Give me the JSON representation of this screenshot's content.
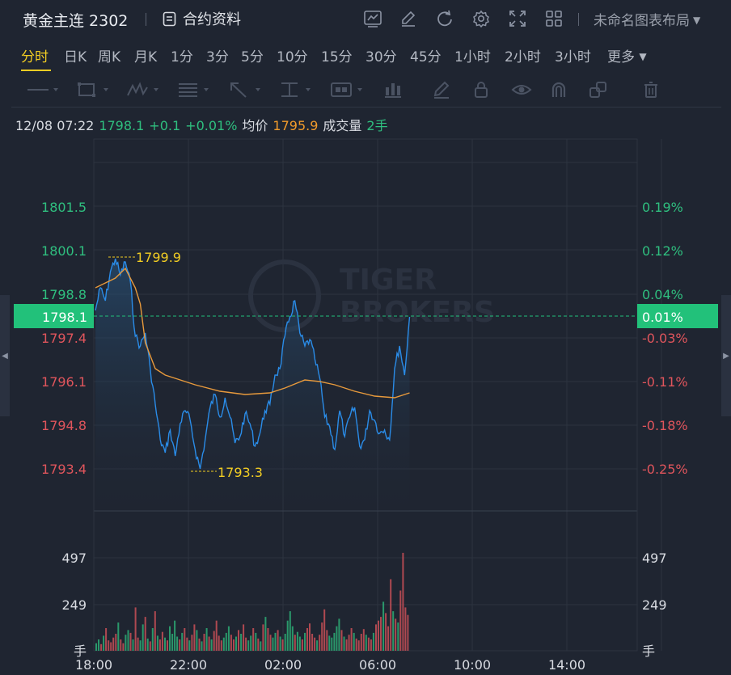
{
  "header": {
    "title": "黄金主连 2302",
    "contract_label": "合约资料",
    "layout_label": "未命名图表布局",
    "icons": [
      "indicator-icon",
      "draw-icon",
      "refresh-icon",
      "settings-icon",
      "fullscreen-icon",
      "grid-layout-icon"
    ]
  },
  "periods": [
    {
      "label": "分时",
      "active": true
    },
    {
      "label": "日K"
    },
    {
      "label": "周K"
    },
    {
      "label": "月K"
    },
    {
      "label": "1分"
    },
    {
      "label": "3分"
    },
    {
      "label": "5分"
    },
    {
      "label": "10分"
    },
    {
      "label": "15分"
    },
    {
      "label": "30分"
    },
    {
      "label": "45分"
    },
    {
      "label": "1小时"
    },
    {
      "label": "2小时"
    },
    {
      "label": "3小时"
    },
    {
      "label": "更多"
    }
  ],
  "toolbar_icons": [
    "line-tool-icon",
    "rectangle-tool-icon",
    "wave-tool-icon",
    "fib-tool-icon",
    "arrow-tool-icon",
    "text-tool-icon",
    "label-tool-icon",
    "bar-tool-icon",
    "pen-icon",
    "lock-icon",
    "eye-icon",
    "magnet-icon",
    "copy-icon",
    "trash-icon"
  ],
  "info": {
    "datetime": "12/08 07:22",
    "price": "1798.1",
    "change": "+0.1",
    "change_pct": "+0.01%",
    "avg_label": "均价",
    "avg_value": "1795.9",
    "volume_label": "成交量",
    "volume_value": "2手"
  },
  "watermark": "TIGER BROKERS",
  "colors": {
    "up": "#2fbf7f",
    "down": "#e0555c",
    "price_line": "#2a8ce8",
    "avg_line": "#e89a3c",
    "highlight": "#22c17a"
  },
  "chart_data": {
    "type": "line",
    "x_ticks": [
      "18:00",
      "22:00",
      "02:00",
      "06:00",
      "10:00",
      "14:00"
    ],
    "price_ticks": [
      1801.5,
      1800.1,
      1798.8,
      1797.4,
      1796.1,
      1794.8,
      1793.4
    ],
    "price_tick_labels": [
      "1801.5",
      "1800.1",
      "1798.8",
      "1797.4",
      "1796.1",
      "1794.8",
      "1793.4"
    ],
    "pct_tick_labels": [
      "0.19%",
      "0.12%",
      "0.04%",
      "-0.03%",
      "-0.11%",
      "-0.18%",
      "-0.25%"
    ],
    "current_price": "1798.1",
    "current_pct": "0.01%",
    "high_label": "1799.9",
    "low_label": "1793.3",
    "volume_ticks": [
      "497",
      "249"
    ],
    "volume_unit": "手",
    "price_series": [
      [
        0,
        1798.3
      ],
      [
        2,
        1799.0
      ],
      [
        4,
        1798.6
      ],
      [
        6,
        1799.5
      ],
      [
        8,
        1799.9
      ],
      [
        10,
        1799.4
      ],
      [
        12,
        1799.8
      ],
      [
        14,
        1799.2
      ],
      [
        16,
        1797.5
      ],
      [
        18,
        1797.2
      ],
      [
        20,
        1797.6
      ],
      [
        22,
        1796.5
      ],
      [
        24,
        1795.4
      ],
      [
        26,
        1794.3
      ],
      [
        28,
        1793.9
      ],
      [
        30,
        1794.6
      ],
      [
        32,
        1793.8
      ],
      [
        34,
        1794.8
      ],
      [
        36,
        1795.2
      ],
      [
        38,
        1794.9
      ],
      [
        40,
        1794.0
      ],
      [
        42,
        1793.4
      ],
      [
        44,
        1794.3
      ],
      [
        46,
        1795.3
      ],
      [
        48,
        1795.7
      ],
      [
        50,
        1795.0
      ],
      [
        52,
        1795.6
      ],
      [
        54,
        1795.0
      ],
      [
        56,
        1794.2
      ],
      [
        58,
        1794.4
      ],
      [
        60,
        1795.1
      ],
      [
        62,
        1794.8
      ],
      [
        64,
        1794.1
      ],
      [
        66,
        1794.5
      ],
      [
        68,
        1795.2
      ],
      [
        70,
        1795.4
      ],
      [
        72,
        1796.3
      ],
      [
        74,
        1796.5
      ],
      [
        76,
        1797.5
      ],
      [
        78,
        1798.1
      ],
      [
        80,
        1798.6
      ],
      [
        82,
        1797.6
      ],
      [
        84,
        1797.2
      ],
      [
        86,
        1797.4
      ],
      [
        88,
        1796.8
      ],
      [
        90,
        1796.2
      ],
      [
        92,
        1795.0
      ],
      [
        94,
        1794.7
      ],
      [
        96,
        1794.0
      ],
      [
        98,
        1795.2
      ],
      [
        100,
        1794.4
      ],
      [
        102,
        1795.0
      ],
      [
        104,
        1795.3
      ],
      [
        106,
        1794.1
      ],
      [
        108,
        1794.3
      ],
      [
        110,
        1795.2
      ],
      [
        112,
        1794.9
      ],
      [
        114,
        1794.5
      ],
      [
        116,
        1794.6
      ],
      [
        118,
        1794.3
      ],
      [
        120,
        1796.5
      ],
      [
        122,
        1797.2
      ],
      [
        124,
        1796.3
      ],
      [
        126,
        1798.1
      ]
    ],
    "avg_series": [
      [
        0,
        1799.0
      ],
      [
        8,
        1799.3
      ],
      [
        12,
        1799.6
      ],
      [
        16,
        1799.0
      ],
      [
        18,
        1798.5
      ],
      [
        20,
        1797.3
      ],
      [
        24,
        1796.5
      ],
      [
        28,
        1796.3
      ],
      [
        32,
        1796.2
      ],
      [
        40,
        1796.0
      ],
      [
        50,
        1795.8
      ],
      [
        60,
        1795.7
      ],
      [
        70,
        1795.75
      ],
      [
        76,
        1795.9
      ],
      [
        84,
        1796.15
      ],
      [
        90,
        1796.1
      ],
      [
        96,
        1796.0
      ],
      [
        104,
        1795.8
      ],
      [
        112,
        1795.65
      ],
      [
        120,
        1795.6
      ],
      [
        126,
        1795.75
      ]
    ],
    "volume_series": [
      40,
      60,
      35,
      80,
      120,
      55,
      45,
      70,
      90,
      150,
      60,
      40,
      85,
      110,
      95,
      60,
      230,
      70,
      55,
      140,
      180,
      65,
      50,
      120,
      210,
      80,
      60,
      100,
      70,
      55,
      130,
      90,
      160,
      75,
      60,
      95,
      120,
      70,
      55,
      85,
      140,
      110,
      65,
      50,
      90,
      120,
      75,
      60,
      105,
      160,
      80,
      55,
      70,
      95,
      130,
      85,
      60,
      75,
      110,
      90,
      140,
      70,
      55,
      80,
      120,
      95,
      65,
      50,
      140,
      180,
      120,
      85,
      70,
      95,
      110,
      75,
      60,
      90,
      160,
      210,
      130,
      85,
      100,
      75,
      60,
      95,
      120,
      145,
      90,
      70,
      55,
      85,
      150,
      220,
      110,
      80,
      70,
      95,
      130,
      170,
      110,
      75,
      60,
      85,
      120,
      95,
      65,
      55,
      90,
      115,
      85,
      70,
      60,
      95,
      140,
      160,
      180,
      260,
      200,
      130,
      380,
      210,
      170,
      150,
      320,
      520,
      230,
      190
    ]
  }
}
